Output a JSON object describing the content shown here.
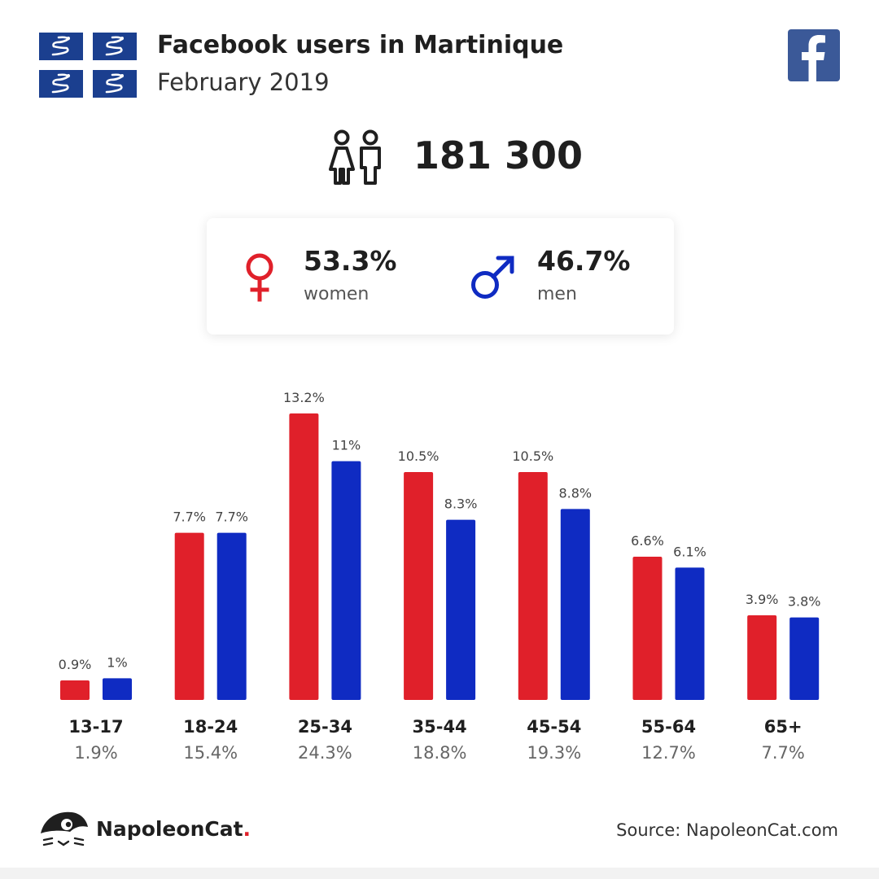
{
  "header": {
    "title": "Facebook users in Martinique",
    "subtitle": "February 2019"
  },
  "total": {
    "value": "181 300"
  },
  "gender": {
    "women": {
      "pct": "53.3%",
      "label": "women"
    },
    "men": {
      "pct": "46.7%",
      "label": "men"
    }
  },
  "colors": {
    "women": "#e0202a",
    "men": "#0f2bc2",
    "facebook": "#3b5998",
    "flag": "#1b3f8f"
  },
  "icons": [
    "martinique-flag-icon",
    "facebook-logo-icon",
    "people-icon",
    "female-symbol-icon",
    "male-symbol-icon",
    "napoleoncat-logo-icon"
  ],
  "chart_data": {
    "type": "bar",
    "categories": [
      "13-17",
      "18-24",
      "25-34",
      "35-44",
      "45-54",
      "55-64",
      "65+"
    ],
    "category_totals": [
      "1.9%",
      "15.4%",
      "24.3%",
      "18.8%",
      "19.3%",
      "12.7%",
      "7.7%"
    ],
    "series": [
      {
        "key": "women",
        "color": "#e0202a",
        "values": [
          0.9,
          7.7,
          13.2,
          10.5,
          10.5,
          6.6,
          3.9
        ],
        "labels": [
          "0.9%",
          "7.7%",
          "13.2%",
          "10.5%",
          "10.5%",
          "6.6%",
          "3.9%"
        ]
      },
      {
        "key": "men",
        "color": "#0f2bc2",
        "values": [
          1,
          7.7,
          11,
          8.3,
          8.8,
          6.1,
          3.8
        ],
        "labels": [
          "1%",
          "7.7%",
          "11%",
          "8.3%",
          "8.8%",
          "6.1%",
          "3.8%"
        ]
      }
    ],
    "ylim": [
      0,
      13.2
    ],
    "grid": false,
    "legend": "none"
  },
  "footer": {
    "brand_name": "NapoleonCat",
    "brand_dot": ".",
    "source": "Source: NapoleonCat.com"
  }
}
